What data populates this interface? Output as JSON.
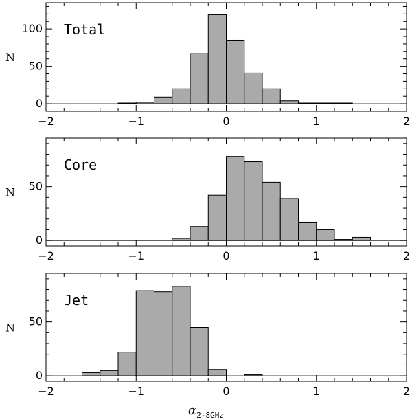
{
  "chart_data": [
    {
      "type": "bar",
      "title": "Total",
      "ylabel": "N",
      "xlabel": "α2-8GHz",
      "xlim": [
        -2,
        2
      ],
      "ylim": [
        -10,
        135
      ],
      "xticks": [
        -2,
        -1,
        0,
        1,
        2
      ],
      "yticks": [
        0,
        50,
        100
      ],
      "bin_width": 0.2,
      "bin_left_edges": [
        -1.8,
        -1.6,
        -1.4,
        -1.2,
        -1.0,
        -0.8,
        -0.6,
        -0.4,
        -0.2,
        0.0,
        0.2,
        0.4,
        0.6,
        0.8,
        1.0,
        1.2,
        1.4,
        1.6
      ],
      "values": [
        0,
        0,
        0,
        1,
        2,
        9,
        20,
        67,
        119,
        85,
        41,
        20,
        4,
        1,
        1,
        1,
        0,
        0
      ],
      "fill": "#aaaaaa"
    },
    {
      "type": "bar",
      "title": "Core",
      "ylabel": "N",
      "xlabel": "α2-8GHz",
      "xlim": [
        -2,
        2
      ],
      "ylim": [
        -5,
        95
      ],
      "xticks": [
        -2,
        -1,
        0,
        1,
        2
      ],
      "yticks": [
        0,
        50
      ],
      "bin_width": 0.2,
      "bin_left_edges": [
        -1.8,
        -1.6,
        -1.4,
        -1.2,
        -1.0,
        -0.8,
        -0.6,
        -0.4,
        -0.2,
        0.0,
        0.2,
        0.4,
        0.6,
        0.8,
        1.0,
        1.2,
        1.4,
        1.6
      ],
      "values": [
        0,
        0,
        0,
        0,
        0,
        0,
        2,
        13,
        42,
        78,
        73,
        54,
        39,
        17,
        10,
        1,
        3,
        0
      ],
      "fill": "#aaaaaa"
    },
    {
      "type": "bar",
      "title": "Jet",
      "ylabel": "N",
      "xlabel": "α2-8GHz",
      "xlim": [
        -2,
        2
      ],
      "ylim": [
        -5,
        95
      ],
      "xticks": [
        -2,
        -1,
        0,
        1,
        2
      ],
      "yticks": [
        0,
        50
      ],
      "bin_width": 0.2,
      "bin_left_edges": [
        -1.8,
        -1.6,
        -1.4,
        -1.2,
        -1.0,
        -0.8,
        -0.6,
        -0.4,
        -0.2,
        0.0,
        0.2,
        0.4,
        0.6,
        0.8,
        1.0,
        1.2,
        1.4,
        1.6
      ],
      "values": [
        0,
        3,
        5,
        22,
        79,
        78,
        83,
        45,
        6,
        0,
        1,
        0,
        0,
        0,
        0,
        0,
        0,
        0
      ],
      "fill": "#aaaaaa"
    }
  ],
  "axis": {
    "ylabel": "N",
    "xlabel_main": "α",
    "xlabel_sub": "2-8GHz"
  }
}
